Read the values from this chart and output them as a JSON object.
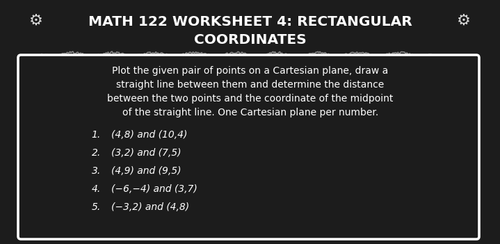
{
  "title_line1": "MATH 122 WORKSHEET 4: RECTANGULAR",
  "title_line2": "COORDINATES",
  "bg_color": "#1c1c1c",
  "title_color": "#ffffff",
  "title_fontsize": 14.5,
  "gear_symbol": "⚙",
  "instruction_text": "Plot the given pair of points on a Cartesian plane, draw a\nstraight line between them and determine the distance\nbetween the two points and the coordinate of the midpoint\nof the straight line. One Cartesian plane per number.",
  "items": [
    {
      "num": "1.",
      "coords": "(4,8) and (10,4)"
    },
    {
      "num": "2.",
      "coords": "(3,2) and (7,5)"
    },
    {
      "num": "3.",
      "coords": "(4,9) and (9,5)"
    },
    {
      "num": "4.",
      "coords": "(−6,−4) and (3,7)"
    },
    {
      "num": "5.",
      "coords": "(−3,2) and (4,8)"
    }
  ],
  "box_facecolor": "#1c1c1c",
  "box_edgecolor": "#ffffff",
  "item_number_color": "#ffffff",
  "item_coords_color": "#ffffff",
  "instruction_color": "#ffffff",
  "item_fontsize": 10,
  "instruction_fontsize": 10,
  "gear_fontsize": 16,
  "underline_color": "#aaaaaa"
}
